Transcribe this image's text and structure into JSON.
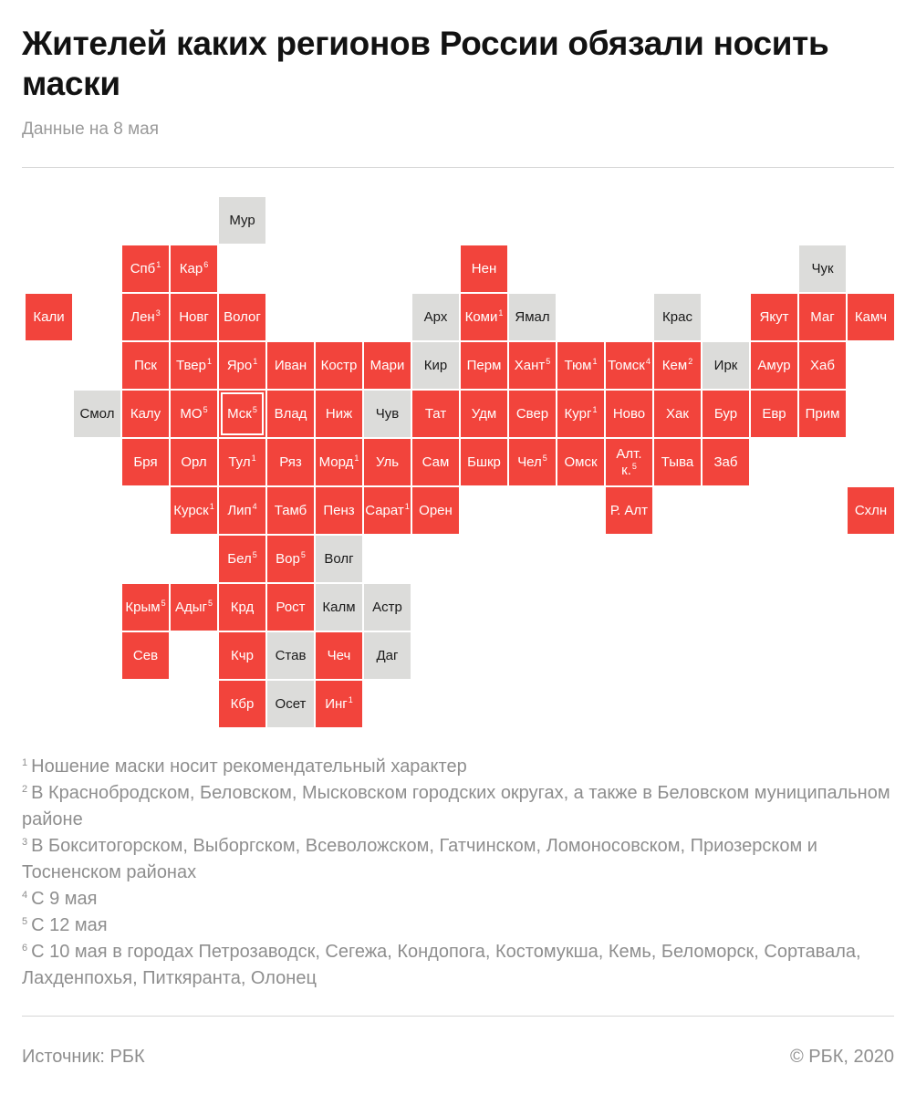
{
  "header": {
    "title": "Жителей каких регионов России обязали носить маски",
    "subtitle": "Данные на 8 мая"
  },
  "colors": {
    "mask_required": "#f2443c",
    "no_mask": "#dcdcda"
  },
  "regions": [
    {
      "label": "Мур",
      "status": "no",
      "col": 4,
      "row": 0
    },
    {
      "label": "Спб",
      "note": "1",
      "status": "yes",
      "col": 2,
      "row": 1
    },
    {
      "label": "Кар",
      "note": "6",
      "status": "yes",
      "col": 3,
      "row": 1
    },
    {
      "label": "Нен",
      "status": "yes",
      "col": 9,
      "row": 1
    },
    {
      "label": "Чук",
      "status": "no",
      "col": 16,
      "row": 1
    },
    {
      "label": "Кали",
      "status": "yes",
      "col": 0,
      "row": 2
    },
    {
      "label": "Лен",
      "note": "3",
      "status": "yes",
      "col": 2,
      "row": 2
    },
    {
      "label": "Новг",
      "status": "yes",
      "col": 3,
      "row": 2
    },
    {
      "label": "Волог",
      "status": "yes",
      "col": 4,
      "row": 2
    },
    {
      "label": "Арх",
      "status": "no",
      "col": 8,
      "row": 2
    },
    {
      "label": "Коми",
      "note": "1",
      "status": "yes",
      "col": 9,
      "row": 2
    },
    {
      "label": "Ямал",
      "status": "no",
      "col": 10,
      "row": 2
    },
    {
      "label": "Крас",
      "status": "no",
      "col": 13,
      "row": 2
    },
    {
      "label": "Якут",
      "status": "yes",
      "col": 15,
      "row": 2
    },
    {
      "label": "Маг",
      "status": "yes",
      "col": 16,
      "row": 2
    },
    {
      "label": "Камч",
      "status": "yes",
      "col": 17,
      "row": 2
    },
    {
      "label": "Пск",
      "status": "yes",
      "col": 2,
      "row": 3
    },
    {
      "label": "Твер",
      "note": "1",
      "status": "yes",
      "col": 3,
      "row": 3
    },
    {
      "label": "Яро",
      "note": "1",
      "status": "yes",
      "col": 4,
      "row": 3
    },
    {
      "label": "Иван",
      "status": "yes",
      "col": 5,
      "row": 3
    },
    {
      "label": "Костр",
      "status": "yes",
      "col": 6,
      "row": 3
    },
    {
      "label": "Мари",
      "status": "yes",
      "col": 7,
      "row": 3
    },
    {
      "label": "Кир",
      "status": "no",
      "col": 8,
      "row": 3
    },
    {
      "label": "Перм",
      "status": "yes",
      "col": 9,
      "row": 3
    },
    {
      "label": "Хант",
      "note": "5",
      "status": "yes",
      "col": 10,
      "row": 3
    },
    {
      "label": "Тюм",
      "note": "1",
      "status": "yes",
      "col": 11,
      "row": 3
    },
    {
      "label": "Томск",
      "note": "4",
      "status": "yes",
      "col": 12,
      "row": 3
    },
    {
      "label": "Кем",
      "note": "2",
      "status": "yes",
      "col": 13,
      "row": 3
    },
    {
      "label": "Ирк",
      "status": "no",
      "col": 14,
      "row": 3
    },
    {
      "label": "Амур",
      "status": "yes",
      "col": 15,
      "row": 3
    },
    {
      "label": "Хаб",
      "status": "yes",
      "col": 16,
      "row": 3
    },
    {
      "label": "Смол",
      "status": "no",
      "col": 1,
      "row": 4
    },
    {
      "label": "Калу",
      "status": "yes",
      "col": 2,
      "row": 4
    },
    {
      "label": "МО",
      "note": "5",
      "status": "yes",
      "col": 3,
      "row": 4
    },
    {
      "label": "Мск",
      "note": "5",
      "status": "yes",
      "col": 4,
      "row": 4,
      "highlight": true
    },
    {
      "label": "Влад",
      "status": "yes",
      "col": 5,
      "row": 4
    },
    {
      "label": "Ниж",
      "status": "yes",
      "col": 6,
      "row": 4
    },
    {
      "label": "Чув",
      "status": "no",
      "col": 7,
      "row": 4
    },
    {
      "label": "Тат",
      "status": "yes",
      "col": 8,
      "row": 4
    },
    {
      "label": "Удм",
      "status": "yes",
      "col": 9,
      "row": 4
    },
    {
      "label": "Свер",
      "status": "yes",
      "col": 10,
      "row": 4
    },
    {
      "label": "Кург",
      "note": "1",
      "status": "yes",
      "col": 11,
      "row": 4
    },
    {
      "label": "Ново",
      "status": "yes",
      "col": 12,
      "row": 4
    },
    {
      "label": "Хак",
      "status": "yes",
      "col": 13,
      "row": 4
    },
    {
      "label": "Бур",
      "status": "yes",
      "col": 14,
      "row": 4
    },
    {
      "label": "Евр",
      "status": "yes",
      "col": 15,
      "row": 4
    },
    {
      "label": "Прим",
      "status": "yes",
      "col": 16,
      "row": 4
    },
    {
      "label": "Бря",
      "status": "yes",
      "col": 2,
      "row": 5
    },
    {
      "label": "Орл",
      "status": "yes",
      "col": 3,
      "row": 5
    },
    {
      "label": "Тул",
      "note": "1",
      "status": "yes",
      "col": 4,
      "row": 5
    },
    {
      "label": "Ряз",
      "status": "yes",
      "col": 5,
      "row": 5
    },
    {
      "label": "Морд",
      "note": "1",
      "status": "yes",
      "col": 6,
      "row": 5
    },
    {
      "label": "Уль",
      "status": "yes",
      "col": 7,
      "row": 5
    },
    {
      "label": "Сам",
      "status": "yes",
      "col": 8,
      "row": 5
    },
    {
      "label": "Бшкр",
      "status": "yes",
      "col": 9,
      "row": 5
    },
    {
      "label": "Чел",
      "note": "5",
      "status": "yes",
      "col": 10,
      "row": 5
    },
    {
      "label": "Омск",
      "status": "yes",
      "col": 11,
      "row": 5
    },
    {
      "label": "Алт. к.",
      "note": "5",
      "status": "yes",
      "col": 12,
      "row": 5
    },
    {
      "label": "Тыва",
      "status": "yes",
      "col": 13,
      "row": 5
    },
    {
      "label": "Заб",
      "status": "yes",
      "col": 14,
      "row": 5
    },
    {
      "label": "Курск",
      "note": "1",
      "status": "yes",
      "col": 3,
      "row": 6
    },
    {
      "label": "Лип",
      "note": "4",
      "status": "yes",
      "col": 4,
      "row": 6
    },
    {
      "label": "Тамб",
      "status": "yes",
      "col": 5,
      "row": 6
    },
    {
      "label": "Пенз",
      "status": "yes",
      "col": 6,
      "row": 6
    },
    {
      "label": "Сарат",
      "note": "1",
      "status": "yes",
      "col": 7,
      "row": 6
    },
    {
      "label": "Орен",
      "status": "yes",
      "col": 8,
      "row": 6
    },
    {
      "label": "Р. Алт",
      "status": "yes",
      "col": 12,
      "row": 6
    },
    {
      "label": "Схлн",
      "status": "yes",
      "col": 17,
      "row": 6
    },
    {
      "label": "Бел",
      "note": "5",
      "status": "yes",
      "col": 4,
      "row": 7
    },
    {
      "label": "Вор",
      "note": "5",
      "status": "yes",
      "col": 5,
      "row": 7
    },
    {
      "label": "Волг",
      "status": "no",
      "col": 6,
      "row": 7
    },
    {
      "label": "Крым",
      "note": "5",
      "status": "yes",
      "col": 2,
      "row": 8
    },
    {
      "label": "Адыг",
      "note": "5",
      "status": "yes",
      "col": 3,
      "row": 8
    },
    {
      "label": "Крд",
      "status": "yes",
      "col": 4,
      "row": 8
    },
    {
      "label": "Рост",
      "status": "yes",
      "col": 5,
      "row": 8
    },
    {
      "label": "Калм",
      "status": "no",
      "col": 6,
      "row": 8
    },
    {
      "label": "Астр",
      "status": "no",
      "col": 7,
      "row": 8
    },
    {
      "label": "Сев",
      "status": "yes",
      "col": 2,
      "row": 9
    },
    {
      "label": "Кчр",
      "status": "yes",
      "col": 4,
      "row": 9
    },
    {
      "label": "Став",
      "status": "no",
      "col": 5,
      "row": 9
    },
    {
      "label": "Чеч",
      "status": "yes",
      "col": 6,
      "row": 9
    },
    {
      "label": "Даг",
      "status": "no",
      "col": 7,
      "row": 9
    },
    {
      "label": "Кбр",
      "status": "yes",
      "col": 4,
      "row": 10
    },
    {
      "label": "Осет",
      "status": "no",
      "col": 5,
      "row": 10
    },
    {
      "label": "Инг",
      "note": "1",
      "status": "yes",
      "col": 6,
      "row": 10
    }
  ],
  "footnotes": [
    {
      "num": "1",
      "text": "Ношение маски носит рекомендательный характер"
    },
    {
      "num": "2",
      "text": "В Краснобродском, Беловском, Мысковском городских округах, а также в Беловском муниципальном районе"
    },
    {
      "num": "3",
      "text": "В Бокситогорском, Выборгском, Всеволожском, Гатчинском, Ломоносовском, Приозерском и Тосненском районах"
    },
    {
      "num": "4",
      "text": "С 9 мая"
    },
    {
      "num": "5",
      "text": "С 12 мая"
    },
    {
      "num": "6",
      "text": "С 10 мая в городах Петрозаводск, Сегежа, Кондопога, Костомукша, Кемь, Беломорск, Сортавала, Лахденпохья, Питкяранта, Олонец"
    }
  ],
  "footer": {
    "source": "Источник: РБК",
    "copyright": "© РБК, 2020"
  }
}
